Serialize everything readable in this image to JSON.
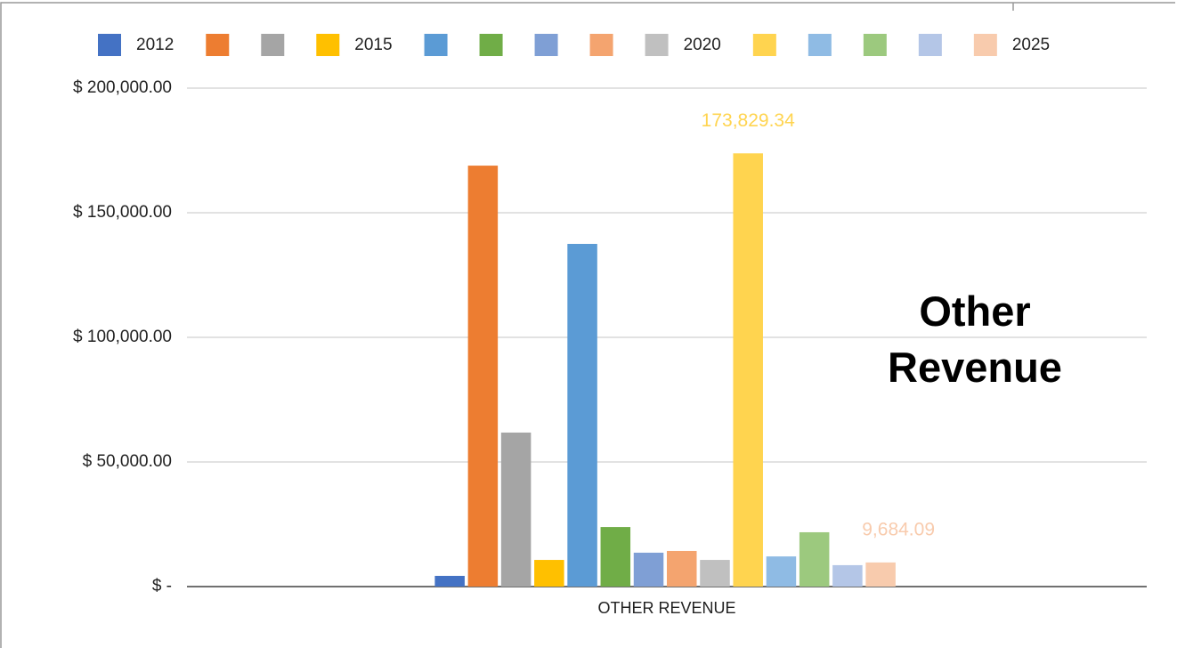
{
  "chart_data": {
    "type": "bar",
    "title": "Other Revenue",
    "categories": [
      "OTHER REVENUE"
    ],
    "ylim": [
      0,
      200000
    ],
    "yticks": [
      {
        "value": 0,
        "label": "$ -"
      },
      {
        "value": 50000,
        "label": "$ 50,000.00"
      },
      {
        "value": 100000,
        "label": "$ 100,000.00"
      },
      {
        "value": 150000,
        "label": "$ 150,000.00"
      },
      {
        "value": 200000,
        "label": "$ 200,000.00"
      }
    ],
    "grid": true,
    "legend": "top",
    "series": [
      {
        "name": "2012",
        "color": "#4472c4",
        "values": [
          4300
        ]
      },
      {
        "name": null,
        "color": "#ed7d31",
        "values": [
          168900
        ]
      },
      {
        "name": null,
        "color": "#a5a5a5",
        "values": [
          61800
        ]
      },
      {
        "name": "2015",
        "color": "#ffc000",
        "values": [
          10700
        ]
      },
      {
        "name": null,
        "color": "#5b9bd5",
        "values": [
          137500
        ]
      },
      {
        "name": null,
        "color": "#70ad47",
        "values": [
          23900
        ]
      },
      {
        "name": null,
        "color": "#7f9fd5",
        "values": [
          13600
        ]
      },
      {
        "name": null,
        "color": "#f4a46f",
        "values": [
          14300
        ]
      },
      {
        "name": "2020",
        "color": "#c0c0c0",
        "values": [
          10700
        ]
      },
      {
        "name": null,
        "color": "#ffd44f",
        "values": [
          173829.34
        ],
        "value_labels": [
          "173,829.34"
        ]
      },
      {
        "name": null,
        "color": "#8fbbe4",
        "values": [
          12100
        ]
      },
      {
        "name": null,
        "color": "#9cc97e",
        "values": [
          21800
        ]
      },
      {
        "name": null,
        "color": "#b4c6e7",
        "values": [
          8600
        ]
      },
      {
        "name": "2025",
        "color": "#f8cbad",
        "values": [
          9684.09
        ],
        "value_labels": [
          "9,684.09"
        ]
      }
    ]
  }
}
